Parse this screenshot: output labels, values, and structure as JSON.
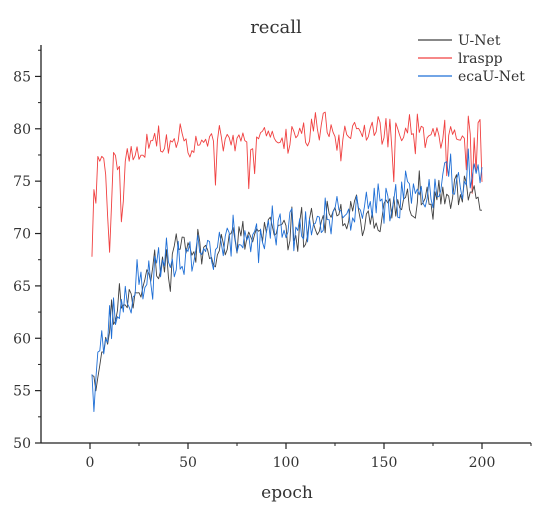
{
  "chart_data": {
    "type": "line",
    "title": "recall",
    "xlabel": "epoch",
    "ylabel": "",
    "xlim": [
      -25,
      225
    ],
    "ylim": [
      50,
      88
    ],
    "x_ticks": [
      0,
      50,
      100,
      150,
      200
    ],
    "y_ticks": [
      50,
      55,
      60,
      65,
      70,
      75,
      80,
      85
    ],
    "x_tick_labels": [
      "0",
      "50",
      "100",
      "150",
      "200"
    ],
    "y_tick_labels": [
      "50",
      "55",
      "60",
      "65",
      "70",
      "75",
      "80",
      "85"
    ],
    "grid": false,
    "legend": "top-right",
    "series": [
      {
        "name": "U-Net",
        "color": "#404040",
        "anchors": [
          [
            1,
            57
          ],
          [
            3,
            55.5
          ],
          [
            5,
            58
          ],
          [
            8,
            60
          ],
          [
            10,
            61
          ],
          [
            14,
            63
          ],
          [
            18,
            64
          ],
          [
            25,
            65
          ],
          [
            30,
            66
          ],
          [
            40,
            67
          ],
          [
            47,
            70
          ],
          [
            50,
            68
          ],
          [
            60,
            68.5
          ],
          [
            70,
            69
          ],
          [
            80,
            69.5
          ],
          [
            90,
            70
          ],
          [
            100,
            70
          ],
          [
            110,
            70.5
          ],
          [
            120,
            71
          ],
          [
            130,
            71.5
          ],
          [
            140,
            72
          ],
          [
            150,
            72
          ],
          [
            160,
            72.5
          ],
          [
            170,
            73
          ],
          [
            180,
            73
          ],
          [
            190,
            73.5
          ],
          [
            200,
            73
          ]
        ],
        "noise": 1.8,
        "seed": 11
      },
      {
        "name": "lraspp",
        "color": "#f04040",
        "anchors": [
          [
            1,
            68
          ],
          [
            2,
            74
          ],
          [
            3,
            73
          ],
          [
            4,
            78
          ],
          [
            6,
            77
          ],
          [
            8,
            76
          ],
          [
            10,
            69
          ],
          [
            12,
            78
          ],
          [
            15,
            77
          ],
          [
            20,
            77
          ],
          [
            30,
            78.5
          ],
          [
            40,
            79
          ],
          [
            60,
            79
          ],
          [
            80,
            79
          ],
          [
            100,
            79.5
          ],
          [
            120,
            80
          ],
          [
            140,
            79.5
          ],
          [
            160,
            79.5
          ],
          [
            180,
            79.5
          ],
          [
            200,
            79.5
          ]
        ],
        "noise": 1.4,
        "seed": 23
      },
      {
        "name": "ecaU-Net",
        "color": "#1f6fd6",
        "anchors": [
          [
            1,
            57
          ],
          [
            2,
            54
          ],
          [
            4,
            59
          ],
          [
            8,
            60
          ],
          [
            12,
            62
          ],
          [
            20,
            64
          ],
          [
            30,
            66
          ],
          [
            40,
            67
          ],
          [
            50,
            68
          ],
          [
            60,
            68.5
          ],
          [
            70,
            69
          ],
          [
            80,
            69.5
          ],
          [
            90,
            70
          ],
          [
            100,
            70.5
          ],
          [
            110,
            70.5
          ],
          [
            120,
            71
          ],
          [
            130,
            71.5
          ],
          [
            140,
            72
          ],
          [
            150,
            73
          ],
          [
            160,
            74
          ],
          [
            170,
            74.5
          ],
          [
            180,
            75
          ],
          [
            190,
            75.5
          ],
          [
            200,
            76.5
          ]
        ],
        "noise": 2.0,
        "seed": 37
      }
    ]
  }
}
